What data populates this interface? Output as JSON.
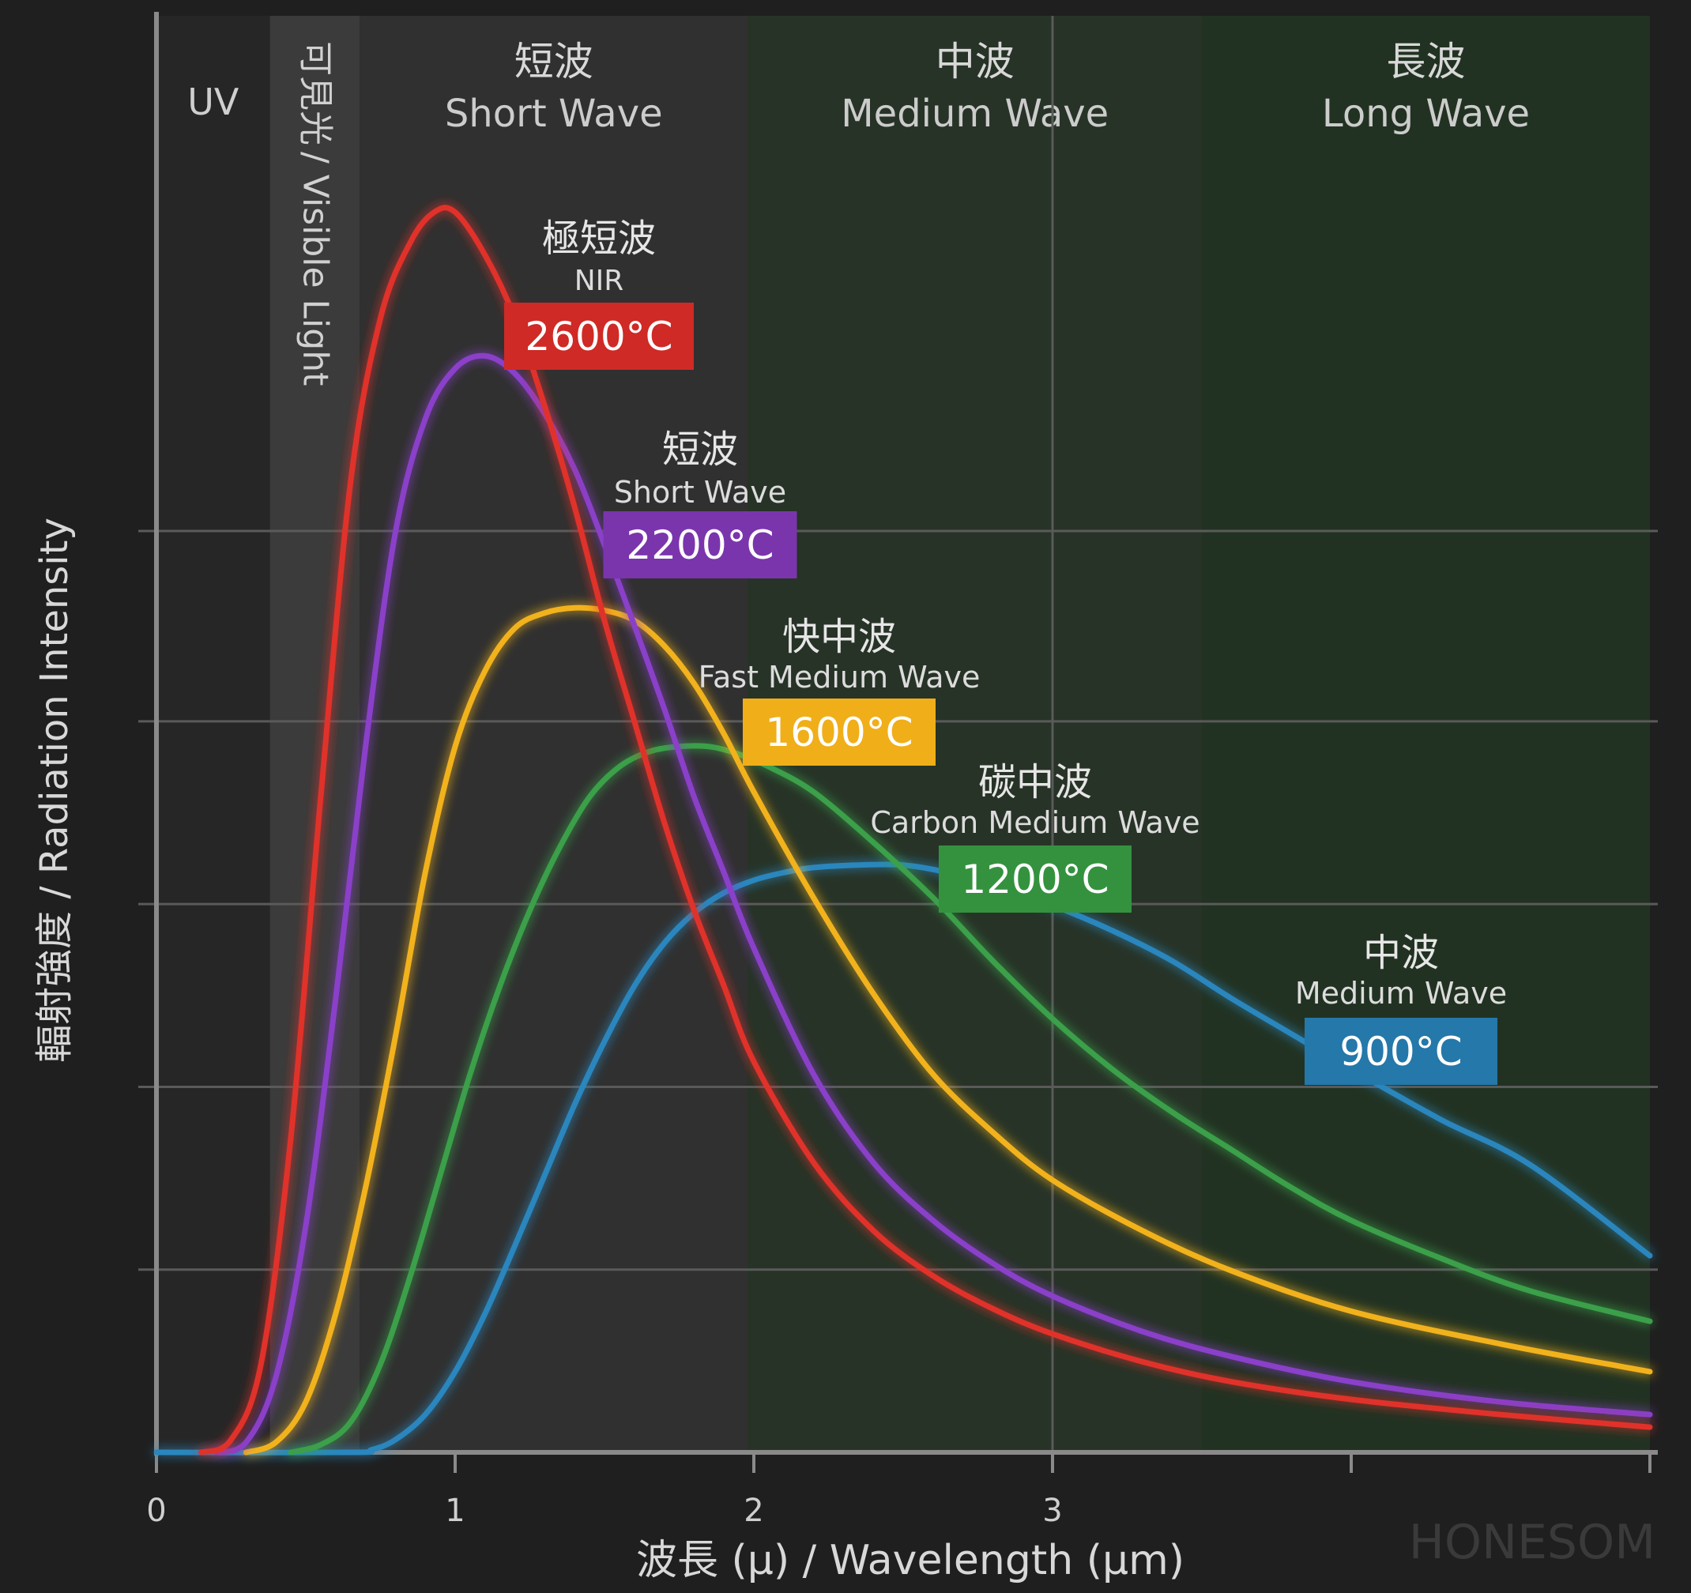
{
  "chart_data": {
    "type": "line",
    "title": "",
    "xlabel": "波長 (μ) / Wavelength (μm)",
    "ylabel": "輻射強度 / Radiation Intensity",
    "xlim": [
      0,
      5
    ],
    "ylim": [
      0,
      5
    ],
    "x_ticks": [
      "0",
      "1",
      "2",
      "3"
    ],
    "grid": true,
    "watermark": "HONESOM",
    "regions": [
      {
        "name": "uv",
        "cn": "",
        "en": "UV",
        "x0": 0,
        "x1": 0.38,
        "color": "#262626"
      },
      {
        "name": "visible",
        "cn": "可見光",
        "en": "/ Visible Light",
        "x0": 0.38,
        "x1": 0.68,
        "color": "#3b3b3b"
      },
      {
        "name": "short-wave",
        "cn": "短波",
        "en": "Short Wave",
        "x0": 0.68,
        "x1": 1.98,
        "color": "#303030"
      },
      {
        "name": "medium-wave",
        "cn": "中波",
        "en": "Medium Wave",
        "x0": 1.98,
        "x1": 3.5,
        "color": "#273327"
      },
      {
        "name": "long-wave",
        "cn": "長波",
        "en": "Long Wave",
        "x0": 3.5,
        "x1": 5.0,
        "color": "#223222"
      }
    ],
    "series": [
      {
        "name": "2600°C",
        "cn": "極短波",
        "en": "NIR",
        "color": "#e0302c",
        "label_bg": "#cf2a26",
        "points": [
          [
            0.15,
            0
          ],
          [
            0.25,
            0.05
          ],
          [
            0.35,
            0.35
          ],
          [
            0.45,
            1.25
          ],
          [
            0.55,
            2.6
          ],
          [
            0.65,
            3.85
          ],
          [
            0.75,
            4.5
          ],
          [
            0.85,
            4.8
          ],
          [
            0.93,
            4.92
          ],
          [
            1.0,
            4.92
          ],
          [
            1.1,
            4.75
          ],
          [
            1.2,
            4.5
          ],
          [
            1.3,
            4.15
          ],
          [
            1.4,
            3.75
          ],
          [
            1.5,
            3.3
          ],
          [
            1.6,
            2.9
          ],
          [
            1.7,
            2.5
          ],
          [
            1.8,
            2.15
          ],
          [
            1.9,
            1.85
          ],
          [
            2.0,
            1.55
          ],
          [
            2.2,
            1.15
          ],
          [
            2.4,
            0.88
          ],
          [
            2.6,
            0.7
          ],
          [
            2.8,
            0.57
          ],
          [
            3.0,
            0.47
          ],
          [
            3.3,
            0.36
          ],
          [
            3.6,
            0.28
          ],
          [
            4.0,
            0.21
          ],
          [
            4.5,
            0.15
          ],
          [
            5.0,
            0.1
          ]
        ]
      },
      {
        "name": "2200°C",
        "cn": "短波",
        "en": "Short Wave",
        "color": "#8a3fc9",
        "label_bg": "#7a35ad",
        "points": [
          [
            0.2,
            0
          ],
          [
            0.3,
            0.04
          ],
          [
            0.4,
            0.3
          ],
          [
            0.5,
            0.9
          ],
          [
            0.6,
            1.8
          ],
          [
            0.7,
            2.8
          ],
          [
            0.8,
            3.65
          ],
          [
            0.9,
            4.1
          ],
          [
            1.0,
            4.3
          ],
          [
            1.1,
            4.35
          ],
          [
            1.2,
            4.28
          ],
          [
            1.3,
            4.12
          ],
          [
            1.4,
            3.9
          ],
          [
            1.5,
            3.6
          ],
          [
            1.6,
            3.28
          ],
          [
            1.7,
            2.95
          ],
          [
            1.8,
            2.6
          ],
          [
            1.9,
            2.3
          ],
          [
            2.0,
            2.0
          ],
          [
            2.2,
            1.5
          ],
          [
            2.4,
            1.15
          ],
          [
            2.6,
            0.92
          ],
          [
            2.8,
            0.75
          ],
          [
            3.0,
            0.62
          ],
          [
            3.3,
            0.48
          ],
          [
            3.6,
            0.38
          ],
          [
            4.0,
            0.28
          ],
          [
            4.5,
            0.2
          ],
          [
            5.0,
            0.15
          ]
        ]
      },
      {
        "name": "1600°C",
        "cn": "快中波",
        "en": "Fast Medium Wave",
        "color": "#f2b21d",
        "label_bg": "#f0ae19",
        "points": [
          [
            0.3,
            0
          ],
          [
            0.4,
            0.04
          ],
          [
            0.5,
            0.2
          ],
          [
            0.6,
            0.55
          ],
          [
            0.7,
            1.05
          ],
          [
            0.8,
            1.65
          ],
          [
            0.9,
            2.3
          ],
          [
            1.0,
            2.8
          ],
          [
            1.1,
            3.1
          ],
          [
            1.2,
            3.27
          ],
          [
            1.3,
            3.33
          ],
          [
            1.4,
            3.35
          ],
          [
            1.5,
            3.34
          ],
          [
            1.6,
            3.3
          ],
          [
            1.7,
            3.2
          ],
          [
            1.8,
            3.05
          ],
          [
            1.9,
            2.85
          ],
          [
            2.0,
            2.62
          ],
          [
            2.2,
            2.2
          ],
          [
            2.4,
            1.82
          ],
          [
            2.6,
            1.5
          ],
          [
            2.8,
            1.27
          ],
          [
            3.0,
            1.08
          ],
          [
            3.3,
            0.88
          ],
          [
            3.6,
            0.72
          ],
          [
            4.0,
            0.56
          ],
          [
            4.5,
            0.43
          ],
          [
            5.0,
            0.32
          ]
        ]
      },
      {
        "name": "1200°C",
        "cn": "碳中波",
        "en": "Carbon Medium Wave",
        "color": "#3aa04a",
        "label_bg": "#34923f",
        "points": [
          [
            0.45,
            0
          ],
          [
            0.55,
            0.03
          ],
          [
            0.65,
            0.12
          ],
          [
            0.75,
            0.35
          ],
          [
            0.85,
            0.7
          ],
          [
            0.95,
            1.1
          ],
          [
            1.05,
            1.5
          ],
          [
            1.15,
            1.85
          ],
          [
            1.25,
            2.15
          ],
          [
            1.35,
            2.4
          ],
          [
            1.45,
            2.6
          ],
          [
            1.55,
            2.72
          ],
          [
            1.65,
            2.78
          ],
          [
            1.75,
            2.8
          ],
          [
            1.85,
            2.8
          ],
          [
            1.95,
            2.77
          ],
          [
            2.05,
            2.72
          ],
          [
            2.2,
            2.62
          ],
          [
            2.4,
            2.42
          ],
          [
            2.6,
            2.2
          ],
          [
            2.8,
            1.95
          ],
          [
            3.0,
            1.72
          ],
          [
            3.2,
            1.52
          ],
          [
            3.4,
            1.35
          ],
          [
            3.6,
            1.2
          ],
          [
            3.8,
            1.05
          ],
          [
            4.0,
            0.92
          ],
          [
            4.3,
            0.77
          ],
          [
            4.6,
            0.64
          ],
          [
            5.0,
            0.52
          ]
        ]
      },
      {
        "name": "900°C",
        "cn": "中波",
        "en": "Medium Wave",
        "color": "#2b86bd",
        "label_bg": "#2478aa",
        "points": [
          [
            0.0,
            0
          ],
          [
            0.65,
            0
          ],
          [
            0.72,
            0.01
          ],
          [
            0.8,
            0.05
          ],
          [
            0.9,
            0.15
          ],
          [
            1.0,
            0.32
          ],
          [
            1.1,
            0.55
          ],
          [
            1.2,
            0.82
          ],
          [
            1.3,
            1.1
          ],
          [
            1.4,
            1.38
          ],
          [
            1.5,
            1.63
          ],
          [
            1.6,
            1.85
          ],
          [
            1.7,
            2.02
          ],
          [
            1.8,
            2.14
          ],
          [
            1.9,
            2.22
          ],
          [
            2.0,
            2.27
          ],
          [
            2.1,
            2.3
          ],
          [
            2.2,
            2.32
          ],
          [
            2.35,
            2.33
          ],
          [
            2.5,
            2.33
          ],
          [
            2.65,
            2.3
          ],
          [
            2.8,
            2.25
          ],
          [
            3.0,
            2.17
          ],
          [
            3.2,
            2.07
          ],
          [
            3.4,
            1.95
          ],
          [
            3.6,
            1.8
          ],
          [
            3.8,
            1.66
          ],
          [
            4.0,
            1.52
          ],
          [
            4.3,
            1.32
          ],
          [
            4.6,
            1.14
          ],
          [
            5.0,
            0.78
          ]
        ]
      }
    ]
  }
}
